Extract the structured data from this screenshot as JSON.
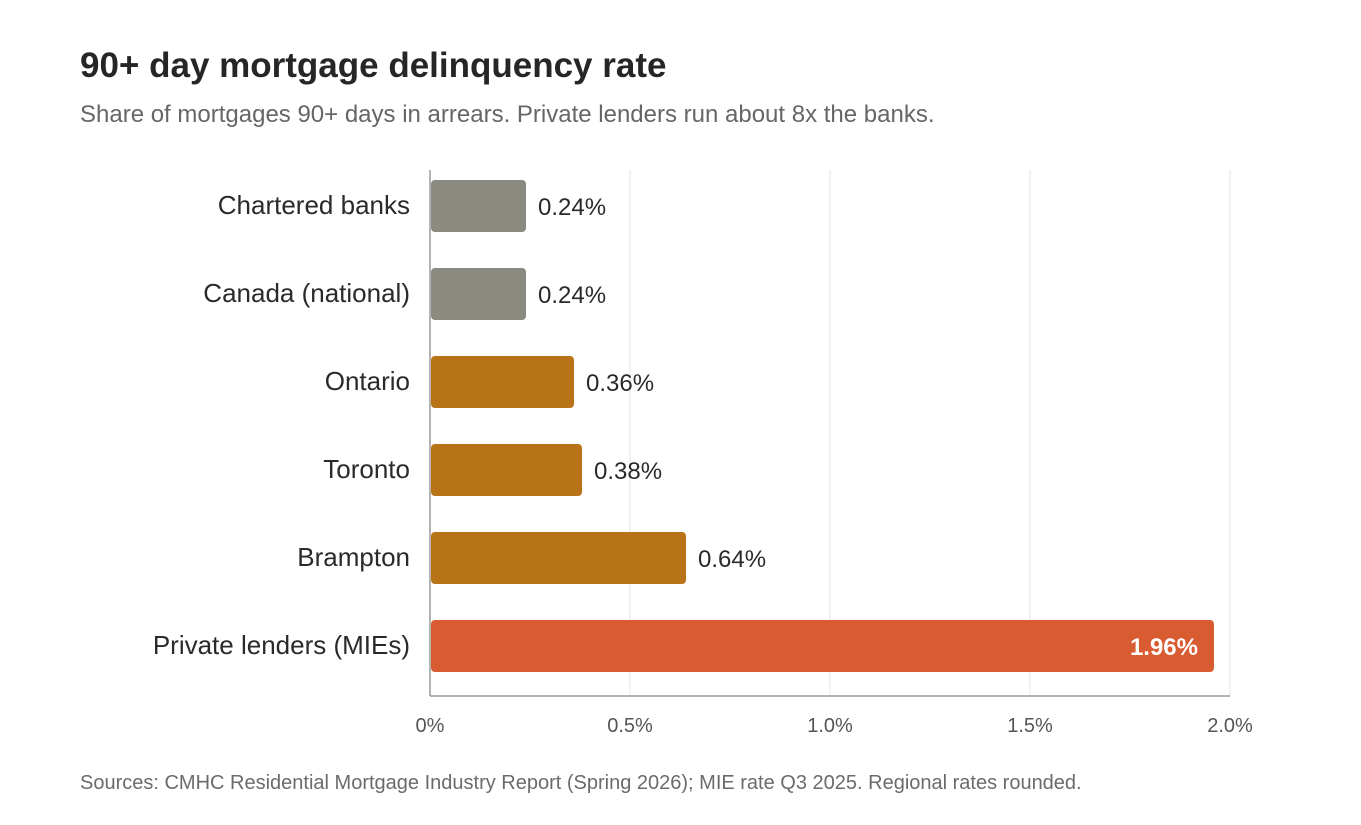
{
  "chart_data": {
    "type": "bar",
    "orientation": "horizontal",
    "title": "90+ day mortgage delinquency rate",
    "subtitle": "Share of mortgages 90+ days in arrears. Private lenders run about 8x the banks.",
    "source": "Sources: CMHC Residential Mortgage Industry Report (Spring 2026); MIE rate Q3 2025. Regional rates rounded.",
    "categories": [
      "Chartered banks",
      "Canada (national)",
      "Ontario",
      "Toronto",
      "Brampton",
      "Private lenders (MIEs)"
    ],
    "values": [
      0.24,
      0.24,
      0.36,
      0.38,
      0.64,
      1.96
    ],
    "value_labels": [
      "0.24%",
      "0.24%",
      "0.36%",
      "0.38%",
      "0.64%",
      "1.96%"
    ],
    "bar_colors": [
      "#8a8a80",
      "#8a8a80",
      "#b87316",
      "#b87316",
      "#b87316",
      "#d95b31"
    ],
    "xlim": [
      0,
      2.0
    ],
    "xticks": [
      0,
      0.5,
      1.0,
      1.5,
      2.0
    ],
    "xtick_labels": [
      "0%",
      "0.5%",
      "1.0%",
      "1.5%",
      "2.0%"
    ],
    "xlabel": "",
    "ylabel": "",
    "grid": true,
    "legend": "none"
  }
}
